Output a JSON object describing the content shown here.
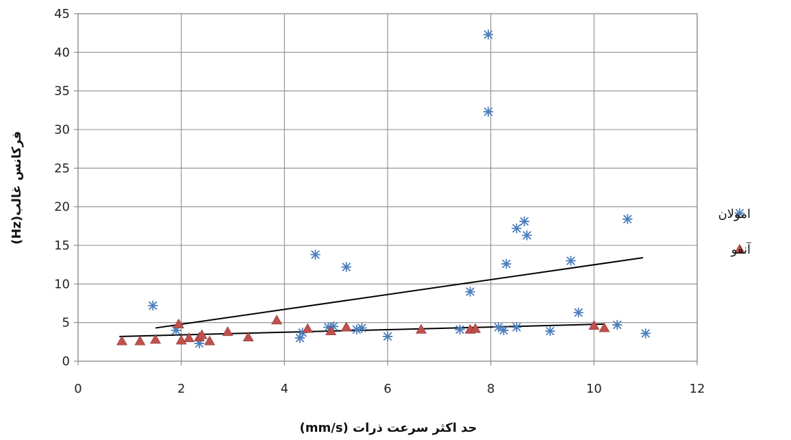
{
  "chart_data": {
    "type": "scatter",
    "xlabel": "حد اکثر سرعت ذرات (mm/s)",
    "ylabel": "فرکانس غالب(Hz)",
    "xlim": [
      0,
      12
    ],
    "ylim": [
      0,
      45
    ],
    "xticks": [
      "0",
      "2",
      "4",
      "6",
      "8",
      "10",
      "12"
    ],
    "yticks": [
      "0",
      "5",
      "10",
      "15",
      "20",
      "25",
      "30",
      "35",
      "40",
      "45"
    ],
    "grid": true,
    "legend_position": "right",
    "series": [
      {
        "name": "امولان",
        "marker": "asterisk",
        "color": "#4a7ebb",
        "points": [
          [
            1.45,
            7.2
          ],
          [
            1.9,
            4.0
          ],
          [
            2.35,
            2.3
          ],
          [
            4.3,
            3.0
          ],
          [
            4.35,
            3.7
          ],
          [
            4.6,
            13.8
          ],
          [
            4.85,
            4.4
          ],
          [
            4.95,
            4.5
          ],
          [
            5.2,
            12.2
          ],
          [
            5.4,
            4.1
          ],
          [
            5.5,
            4.3
          ],
          [
            6.0,
            3.2
          ],
          [
            7.4,
            4.1
          ],
          [
            7.6,
            9.0
          ],
          [
            7.95,
            32.3
          ],
          [
            7.95,
            42.3
          ],
          [
            8.15,
            4.4
          ],
          [
            8.25,
            4.0
          ],
          [
            8.3,
            12.6
          ],
          [
            8.5,
            17.2
          ],
          [
            8.5,
            4.4
          ],
          [
            8.65,
            18.1
          ],
          [
            8.7,
            16.3
          ],
          [
            9.15,
            3.9
          ],
          [
            9.55,
            13.0
          ],
          [
            9.7,
            6.3
          ],
          [
            10.45,
            4.7
          ],
          [
            10.65,
            18.4
          ],
          [
            11.0,
            3.6
          ]
        ],
        "trendline": [
          [
            1.5,
            4.3
          ],
          [
            10.95,
            13.4
          ]
        ]
      },
      {
        "name": "آنفو",
        "marker": "triangle",
        "color": "#c0504d",
        "points": [
          [
            0.85,
            2.6
          ],
          [
            1.2,
            2.6
          ],
          [
            1.5,
            2.8
          ],
          [
            1.95,
            4.8
          ],
          [
            2.0,
            2.7
          ],
          [
            2.15,
            3.0
          ],
          [
            2.35,
            3.1
          ],
          [
            2.4,
            3.4
          ],
          [
            2.55,
            2.6
          ],
          [
            2.9,
            3.8
          ],
          [
            3.3,
            3.1
          ],
          [
            3.85,
            5.3
          ],
          [
            4.45,
            4.2
          ],
          [
            4.9,
            3.9
          ],
          [
            5.2,
            4.4
          ],
          [
            6.65,
            4.1
          ],
          [
            7.6,
            4.1
          ],
          [
            7.7,
            4.2
          ],
          [
            10.0,
            4.6
          ],
          [
            10.2,
            4.3
          ]
        ],
        "trendline": [
          [
            0.8,
            3.2
          ],
          [
            10.2,
            4.8
          ]
        ]
      }
    ]
  }
}
